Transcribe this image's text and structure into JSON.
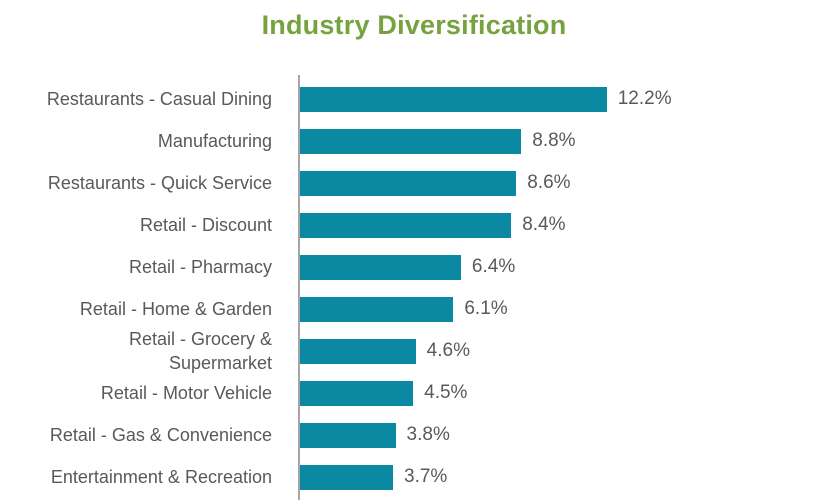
{
  "title": "Industry Diversification",
  "colors": {
    "bar": "#0b89a2",
    "title": "#76a23f",
    "text": "#58595b",
    "axis": "#a6a6a6",
    "background": "#ffffff"
  },
  "chart_data": {
    "type": "bar",
    "orientation": "horizontal",
    "title": "Industry Diversification",
    "categories": [
      "Restaurants - Casual Dining",
      "Manufacturing",
      "Restaurants - Quick Service",
      "Retail - Discount",
      "Retail - Pharmacy",
      "Retail - Home & Garden",
      "Retail - Grocery &\nSupermarket",
      "Retail - Motor Vehicle",
      "Retail - Gas & Convenience",
      "Entertainment & Recreation"
    ],
    "values": [
      12.2,
      8.8,
      8.6,
      8.4,
      6.4,
      6.1,
      4.6,
      4.5,
      3.8,
      3.7
    ],
    "value_labels": [
      "12.2%",
      "8.8%",
      "8.6%",
      "8.4%",
      "6.4%",
      "6.1%",
      "4.6%",
      "4.5%",
      "3.8%",
      "3.7%"
    ],
    "xlabel": "",
    "ylabel": "",
    "xlim": [
      0,
      21
    ],
    "grid": false,
    "legend": false,
    "data_labels": "outside-end",
    "bar_color": "#0b89a2",
    "axis_line": "left-vertical"
  }
}
